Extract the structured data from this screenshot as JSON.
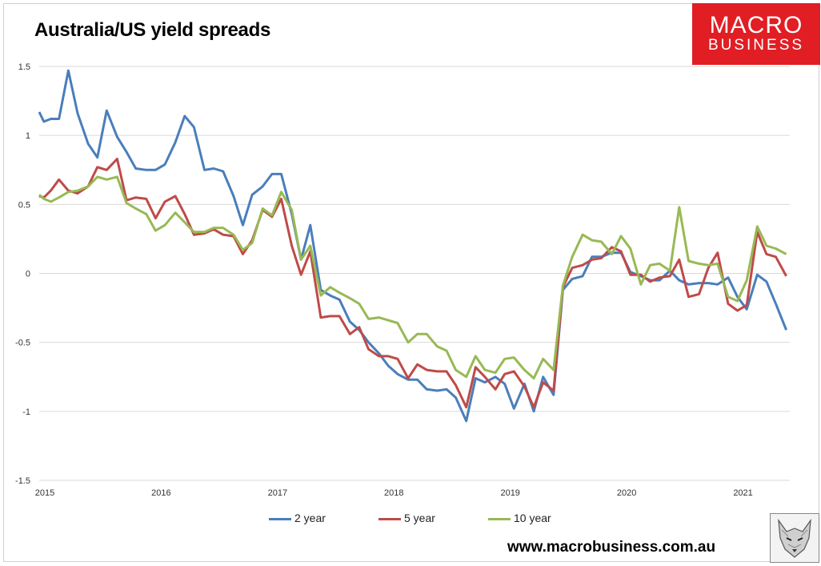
{
  "title": "Australia/US yield spreads",
  "logo": {
    "line1": "MACRO",
    "line2": "BUSINESS",
    "color": "#e01e24"
  },
  "website": "www.macrobusiness.com.au",
  "chart_data": {
    "type": "line",
    "title": "Australia/US yield spreads",
    "xlabel": "",
    "ylabel": "",
    "ylim": [
      -1.5,
      1.5
    ],
    "yticks": [
      1.5,
      1,
      0.5,
      0,
      -0.5,
      -1,
      -1.5
    ],
    "ytick_labels": [
      "1.5",
      "1",
      "0.5",
      "0",
      "-0.5",
      "-1",
      "-1.5"
    ],
    "xlim": [
      2015.0,
      2021.45
    ],
    "xticks": [
      "2015",
      "2016",
      "2017",
      "2018",
      "2019",
      "2020",
      "2021"
    ],
    "grid": true,
    "legend_position": "bottom",
    "series": [
      {
        "name": "2 year",
        "color": "#4a7ebb",
        "points": [
          [
            2015.0,
            1.17
          ],
          [
            2015.04,
            1.1
          ],
          [
            2015.1,
            1.12
          ],
          [
            2015.17,
            1.12
          ],
          [
            2015.25,
            1.47
          ],
          [
            2015.33,
            1.16
          ],
          [
            2015.42,
            0.94
          ],
          [
            2015.5,
            0.84
          ],
          [
            2015.58,
            1.18
          ],
          [
            2015.67,
            0.99
          ],
          [
            2015.75,
            0.88
          ],
          [
            2015.83,
            0.76
          ],
          [
            2015.92,
            0.75
          ],
          [
            2016.0,
            0.75
          ],
          [
            2016.08,
            0.79
          ],
          [
            2016.17,
            0.95
          ],
          [
            2016.25,
            1.14
          ],
          [
            2016.33,
            1.06
          ],
          [
            2016.42,
            0.75
          ],
          [
            2016.5,
            0.76
          ],
          [
            2016.58,
            0.74
          ],
          [
            2016.67,
            0.56
          ],
          [
            2016.75,
            0.35
          ],
          [
            2016.83,
            0.57
          ],
          [
            2016.92,
            0.63
          ],
          [
            2017.0,
            0.72
          ],
          [
            2017.08,
            0.72
          ],
          [
            2017.17,
            0.43
          ],
          [
            2017.25,
            0.1
          ],
          [
            2017.33,
            0.35
          ],
          [
            2017.42,
            -0.12
          ],
          [
            2017.5,
            -0.16
          ],
          [
            2017.58,
            -0.19
          ],
          [
            2017.67,
            -0.35
          ],
          [
            2017.75,
            -0.41
          ],
          [
            2017.83,
            -0.5
          ],
          [
            2017.92,
            -0.58
          ],
          [
            2018.0,
            -0.67
          ],
          [
            2018.08,
            -0.73
          ],
          [
            2018.17,
            -0.77
          ],
          [
            2018.25,
            -0.77
          ],
          [
            2018.33,
            -0.84
          ],
          [
            2018.42,
            -0.85
          ],
          [
            2018.5,
            -0.84
          ],
          [
            2018.58,
            -0.9
          ],
          [
            2018.67,
            -1.07
          ],
          [
            2018.75,
            -0.76
          ],
          [
            2018.83,
            -0.79
          ],
          [
            2018.92,
            -0.75
          ],
          [
            2019.0,
            -0.8
          ],
          [
            2019.08,
            -0.98
          ],
          [
            2019.17,
            -0.8
          ],
          [
            2019.25,
            -1.0
          ],
          [
            2019.33,
            -0.75
          ],
          [
            2019.42,
            -0.88
          ],
          [
            2019.5,
            -0.12
          ],
          [
            2019.58,
            -0.04
          ],
          [
            2019.67,
            -0.02
          ],
          [
            2019.75,
            0.12
          ],
          [
            2019.83,
            0.12
          ],
          [
            2019.92,
            0.15
          ],
          [
            2020.0,
            0.15
          ],
          [
            2020.08,
            0.01
          ],
          [
            2020.17,
            -0.02
          ],
          [
            2020.25,
            -0.05
          ],
          [
            2020.33,
            -0.05
          ],
          [
            2020.42,
            0.02
          ],
          [
            2020.5,
            -0.05
          ],
          [
            2020.58,
            -0.08
          ],
          [
            2020.67,
            -0.07
          ],
          [
            2020.75,
            -0.07
          ],
          [
            2020.83,
            -0.08
          ],
          [
            2020.92,
            -0.03
          ],
          [
            2021.0,
            -0.17
          ],
          [
            2021.08,
            -0.26
          ],
          [
            2021.17,
            -0.01
          ],
          [
            2021.25,
            -0.06
          ],
          [
            2021.33,
            -0.22
          ],
          [
            2021.42,
            -0.41
          ]
        ]
      },
      {
        "name": "5 year",
        "color": "#be4b48",
        "points": [
          [
            2015.0,
            0.56
          ],
          [
            2015.04,
            0.55
          ],
          [
            2015.1,
            0.6
          ],
          [
            2015.17,
            0.68
          ],
          [
            2015.25,
            0.6
          ],
          [
            2015.33,
            0.58
          ],
          [
            2015.42,
            0.63
          ],
          [
            2015.5,
            0.77
          ],
          [
            2015.58,
            0.75
          ],
          [
            2015.67,
            0.83
          ],
          [
            2015.75,
            0.53
          ],
          [
            2015.83,
            0.55
          ],
          [
            2015.92,
            0.54
          ],
          [
            2016.0,
            0.4
          ],
          [
            2016.08,
            0.52
          ],
          [
            2016.17,
            0.56
          ],
          [
            2016.25,
            0.43
          ],
          [
            2016.33,
            0.28
          ],
          [
            2016.42,
            0.29
          ],
          [
            2016.5,
            0.32
          ],
          [
            2016.58,
            0.28
          ],
          [
            2016.67,
            0.27
          ],
          [
            2016.75,
            0.14
          ],
          [
            2016.83,
            0.24
          ],
          [
            2016.92,
            0.46
          ],
          [
            2017.0,
            0.41
          ],
          [
            2017.08,
            0.54
          ],
          [
            2017.17,
            0.2
          ],
          [
            2017.25,
            -0.01
          ],
          [
            2017.33,
            0.16
          ],
          [
            2017.42,
            -0.32
          ],
          [
            2017.5,
            -0.31
          ],
          [
            2017.58,
            -0.31
          ],
          [
            2017.67,
            -0.44
          ],
          [
            2017.75,
            -0.39
          ],
          [
            2017.83,
            -0.55
          ],
          [
            2017.92,
            -0.6
          ],
          [
            2018.0,
            -0.6
          ],
          [
            2018.08,
            -0.62
          ],
          [
            2018.17,
            -0.76
          ],
          [
            2018.25,
            -0.66
          ],
          [
            2018.33,
            -0.7
          ],
          [
            2018.42,
            -0.71
          ],
          [
            2018.5,
            -0.71
          ],
          [
            2018.58,
            -0.81
          ],
          [
            2018.67,
            -0.97
          ],
          [
            2018.75,
            -0.68
          ],
          [
            2018.83,
            -0.75
          ],
          [
            2018.92,
            -0.84
          ],
          [
            2019.0,
            -0.73
          ],
          [
            2019.08,
            -0.71
          ],
          [
            2019.17,
            -0.82
          ],
          [
            2019.25,
            -0.97
          ],
          [
            2019.33,
            -0.79
          ],
          [
            2019.42,
            -0.85
          ],
          [
            2019.5,
            -0.1
          ],
          [
            2019.58,
            0.04
          ],
          [
            2019.67,
            0.06
          ],
          [
            2019.75,
            0.1
          ],
          [
            2019.83,
            0.11
          ],
          [
            2019.92,
            0.19
          ],
          [
            2020.0,
            0.16
          ],
          [
            2020.08,
            -0.01
          ],
          [
            2020.17,
            -0.01
          ],
          [
            2020.25,
            -0.06
          ],
          [
            2020.33,
            -0.03
          ],
          [
            2020.42,
            -0.02
          ],
          [
            2020.5,
            0.1
          ],
          [
            2020.58,
            -0.17
          ],
          [
            2020.67,
            -0.15
          ],
          [
            2020.75,
            0.04
          ],
          [
            2020.83,
            0.15
          ],
          [
            2020.92,
            -0.22
          ],
          [
            2021.0,
            -0.27
          ],
          [
            2021.08,
            -0.23
          ],
          [
            2021.17,
            0.3
          ],
          [
            2021.25,
            0.14
          ],
          [
            2021.33,
            0.12
          ],
          [
            2021.42,
            -0.02
          ]
        ]
      },
      {
        "name": "10 year",
        "color": "#98b954",
        "points": [
          [
            2015.0,
            0.57
          ],
          [
            2015.04,
            0.54
          ],
          [
            2015.1,
            0.52
          ],
          [
            2015.17,
            0.55
          ],
          [
            2015.25,
            0.59
          ],
          [
            2015.33,
            0.6
          ],
          [
            2015.42,
            0.63
          ],
          [
            2015.5,
            0.7
          ],
          [
            2015.58,
            0.68
          ],
          [
            2015.67,
            0.7
          ],
          [
            2015.75,
            0.51
          ],
          [
            2015.83,
            0.47
          ],
          [
            2015.92,
            0.43
          ],
          [
            2016.0,
            0.31
          ],
          [
            2016.08,
            0.35
          ],
          [
            2016.17,
            0.44
          ],
          [
            2016.25,
            0.37
          ],
          [
            2016.33,
            0.3
          ],
          [
            2016.42,
            0.3
          ],
          [
            2016.5,
            0.33
          ],
          [
            2016.58,
            0.33
          ],
          [
            2016.67,
            0.28
          ],
          [
            2016.75,
            0.17
          ],
          [
            2016.83,
            0.22
          ],
          [
            2016.92,
            0.47
          ],
          [
            2017.0,
            0.42
          ],
          [
            2017.08,
            0.59
          ],
          [
            2017.17,
            0.46
          ],
          [
            2017.25,
            0.1
          ],
          [
            2017.33,
            0.2
          ],
          [
            2017.42,
            -0.16
          ],
          [
            2017.5,
            -0.1
          ],
          [
            2017.58,
            -0.14
          ],
          [
            2017.67,
            -0.18
          ],
          [
            2017.75,
            -0.22
          ],
          [
            2017.83,
            -0.33
          ],
          [
            2017.92,
            -0.32
          ],
          [
            2018.0,
            -0.34
          ],
          [
            2018.08,
            -0.36
          ],
          [
            2018.17,
            -0.5
          ],
          [
            2018.25,
            -0.44
          ],
          [
            2018.33,
            -0.44
          ],
          [
            2018.42,
            -0.53
          ],
          [
            2018.5,
            -0.56
          ],
          [
            2018.58,
            -0.7
          ],
          [
            2018.67,
            -0.75
          ],
          [
            2018.75,
            -0.6
          ],
          [
            2018.83,
            -0.7
          ],
          [
            2018.92,
            -0.72
          ],
          [
            2019.0,
            -0.62
          ],
          [
            2019.08,
            -0.61
          ],
          [
            2019.17,
            -0.7
          ],
          [
            2019.25,
            -0.76
          ],
          [
            2019.33,
            -0.62
          ],
          [
            2019.42,
            -0.7
          ],
          [
            2019.5,
            -0.09
          ],
          [
            2019.58,
            0.12
          ],
          [
            2019.67,
            0.28
          ],
          [
            2019.75,
            0.24
          ],
          [
            2019.83,
            0.23
          ],
          [
            2019.92,
            0.14
          ],
          [
            2020.0,
            0.27
          ],
          [
            2020.08,
            0.18
          ],
          [
            2020.17,
            -0.08
          ],
          [
            2020.25,
            0.06
          ],
          [
            2020.33,
            0.07
          ],
          [
            2020.42,
            0.02
          ],
          [
            2020.5,
            0.48
          ],
          [
            2020.58,
            0.09
          ],
          [
            2020.67,
            0.07
          ],
          [
            2020.75,
            0.06
          ],
          [
            2020.83,
            0.07
          ],
          [
            2020.92,
            -0.17
          ],
          [
            2021.0,
            -0.2
          ],
          [
            2021.08,
            -0.05
          ],
          [
            2021.17,
            0.34
          ],
          [
            2021.25,
            0.2
          ],
          [
            2021.33,
            0.18
          ],
          [
            2021.42,
            0.14
          ]
        ]
      }
    ]
  }
}
